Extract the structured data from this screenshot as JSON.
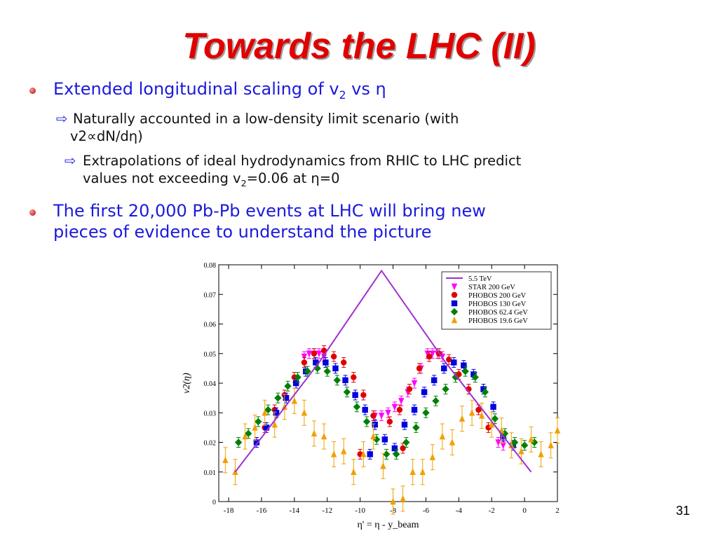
{
  "slide": {
    "title": "Towards the LHC (II)",
    "bullet1": {
      "text": "Extended longitudinal scaling of v",
      "sub": "2",
      "after": " vs η"
    },
    "sub1": {
      "line1": "Naturally accounted in a low-density limit scenario (with",
      "line2": "v2∝dN/dη)"
    },
    "sub2": {
      "line1": "Extrapolations of ideal hydrodynamics from RHIC to LHC predict",
      "line2a": "values not exceeding v",
      "sub": "2",
      "line2b": "=0.06 at η=0"
    },
    "bullet2": {
      "line1": "The first 20,000 Pb-Pb events at LHC will bring new",
      "line2": "pieces of evidence to understand the picture"
    },
    "page_number": "31"
  },
  "chart_data": {
    "type": "scatter",
    "xlabel": "η' = η - y_beam",
    "ylabel": "v2(η)",
    "xlim": [
      -18.6,
      2
    ],
    "ylim": [
      0,
      0.08
    ],
    "xticks": [
      -18,
      -16,
      -14,
      -12,
      -10,
      -8,
      -6,
      -4,
      -2,
      0,
      2
    ],
    "yticks": [
      0,
      0.01,
      0.02,
      0.03,
      0.04,
      0.05,
      0.06,
      0.07,
      0.08
    ],
    "legend_position": "top-right",
    "series": [
      {
        "name": "5.5 TeV",
        "kind": "line",
        "color": "#a030d0",
        "points": [
          [
            -17.6,
            0.01
          ],
          [
            -12.5,
            0.047
          ],
          [
            -8.7,
            0.078
          ],
          [
            -4.8,
            0.047
          ],
          [
            0.4,
            0.01
          ]
        ]
      },
      {
        "name": "STAR 200 GeV",
        "kind": "marker",
        "marker": "tri-down",
        "color": "#ff00ff",
        "points": [
          [
            -13.4,
            0.049
          ],
          [
            -13.1,
            0.05
          ],
          [
            -12.8,
            0.05
          ],
          [
            -12.5,
            0.05
          ],
          [
            -12.2,
            0.049
          ],
          [
            -9.1,
            0.029
          ],
          [
            -8.7,
            0.029
          ],
          [
            -8.3,
            0.03
          ],
          [
            -7.9,
            0.032
          ],
          [
            -7.5,
            0.034
          ],
          [
            -7.1,
            0.037
          ],
          [
            -6.7,
            0.04
          ],
          [
            -6.3,
            0.045
          ],
          [
            -5.9,
            0.05
          ],
          [
            -5.6,
            0.05
          ],
          [
            -5.3,
            0.05
          ],
          [
            -5.0,
            0.049
          ],
          [
            -1.6,
            0.02
          ],
          [
            -1.3,
            0.019
          ]
        ]
      },
      {
        "name": "PHOBOS 200 GeV",
        "kind": "marker",
        "marker": "circle",
        "color": "#e00000",
        "points": [
          [
            -15.8,
            0.025
          ],
          [
            -15.2,
            0.031
          ],
          [
            -14.6,
            0.036
          ],
          [
            -14.0,
            0.042
          ],
          [
            -13.4,
            0.047
          ],
          [
            -12.8,
            0.05
          ],
          [
            -12.2,
            0.051
          ],
          [
            -11.6,
            0.049
          ],
          [
            -11.0,
            0.047
          ],
          [
            -10.4,
            0.042
          ],
          [
            -9.8,
            0.036
          ],
          [
            -9.2,
            0.029
          ],
          [
            -10.0,
            0.016
          ],
          [
            -8.2,
            0.027
          ],
          [
            -7.6,
            0.031
          ],
          [
            -7.0,
            0.038
          ],
          [
            -6.4,
            0.045
          ],
          [
            -5.8,
            0.049
          ],
          [
            -5.2,
            0.05
          ],
          [
            -4.6,
            0.048
          ],
          [
            -4.0,
            0.043
          ],
          [
            -3.4,
            0.038
          ],
          [
            -2.8,
            0.031
          ],
          [
            -2.2,
            0.025
          ],
          [
            -7.4,
            0.018
          ]
        ]
      },
      {
        "name": "PHOBOS 130 GeV",
        "kind": "marker",
        "marker": "square",
        "color": "#0000e0",
        "points": [
          [
            -16.3,
            0.02
          ],
          [
            -15.7,
            0.025
          ],
          [
            -15.1,
            0.03
          ],
          [
            -14.5,
            0.035
          ],
          [
            -13.9,
            0.04
          ],
          [
            -13.3,
            0.044
          ],
          [
            -12.7,
            0.047
          ],
          [
            -12.1,
            0.047
          ],
          [
            -11.5,
            0.045
          ],
          [
            -10.9,
            0.041
          ],
          [
            -10.3,
            0.036
          ],
          [
            -9.7,
            0.031
          ],
          [
            -9.1,
            0.026
          ],
          [
            -8.5,
            0.021
          ],
          [
            -9.4,
            0.016
          ],
          [
            -7.9,
            0.018
          ],
          [
            -7.3,
            0.026
          ],
          [
            -6.7,
            0.031
          ],
          [
            -6.1,
            0.037
          ],
          [
            -5.5,
            0.041
          ],
          [
            -4.9,
            0.045
          ],
          [
            -4.3,
            0.047
          ],
          [
            -3.7,
            0.046
          ],
          [
            -3.1,
            0.043
          ],
          [
            -2.5,
            0.038
          ],
          [
            -1.9,
            0.032
          ],
          [
            -1.3,
            0.022
          ],
          [
            -0.7,
            0.019
          ]
        ]
      },
      {
        "name": "PHOBOS 62.4 GeV",
        "kind": "marker",
        "marker": "diamond",
        "color": "#008000",
        "points": [
          [
            -17.4,
            0.02
          ],
          [
            -16.8,
            0.023
          ],
          [
            -16.2,
            0.027
          ],
          [
            -15.6,
            0.031
          ],
          [
            -15.0,
            0.035
          ],
          [
            -14.4,
            0.039
          ],
          [
            -13.8,
            0.042
          ],
          [
            -13.2,
            0.044
          ],
          [
            -12.6,
            0.045
          ],
          [
            -12.0,
            0.044
          ],
          [
            -11.4,
            0.041
          ],
          [
            -10.8,
            0.037
          ],
          [
            -10.2,
            0.032
          ],
          [
            -9.6,
            0.027
          ],
          [
            -9.0,
            0.021
          ],
          [
            -8.4,
            0.016
          ],
          [
            -7.8,
            0.016
          ],
          [
            -7.2,
            0.02
          ],
          [
            -6.6,
            0.025
          ],
          [
            -6.0,
            0.03
          ],
          [
            -5.4,
            0.034
          ],
          [
            -4.8,
            0.038
          ],
          [
            -4.2,
            0.042
          ],
          [
            -3.6,
            0.044
          ],
          [
            -3.0,
            0.042
          ],
          [
            -2.4,
            0.037
          ],
          [
            -1.8,
            0.028
          ],
          [
            -1.2,
            0.023
          ],
          [
            -0.6,
            0.02
          ],
          [
            0.0,
            0.019
          ],
          [
            0.6,
            0.02
          ]
        ]
      },
      {
        "name": "PHOBOS 19.6 GeV",
        "kind": "marker",
        "marker": "triangle",
        "color": "#f0a000",
        "points": [
          [
            -18.2,
            0.014
          ],
          [
            -17.6,
            0.01
          ],
          [
            -17.0,
            0.022
          ],
          [
            -16.4,
            0.025
          ],
          [
            -15.8,
            0.03
          ],
          [
            -15.2,
            0.026
          ],
          [
            -14.6,
            0.032
          ],
          [
            -14.0,
            0.034
          ],
          [
            -13.4,
            0.03
          ],
          [
            -12.8,
            0.023
          ],
          [
            -12.2,
            0.022
          ],
          [
            -11.6,
            0.016
          ],
          [
            -11.0,
            0.017
          ],
          [
            -10.4,
            0.01
          ],
          [
            -9.8,
            0.016
          ],
          [
            -9.2,
            0.022
          ],
          [
            -8.6,
            0.012
          ],
          [
            -8.0,
            0.0
          ],
          [
            -7.4,
            0.001
          ],
          [
            -6.8,
            0.01
          ],
          [
            -6.2,
            0.01
          ],
          [
            -5.6,
            0.015
          ],
          [
            -5.0,
            0.022
          ],
          [
            -4.4,
            0.02
          ],
          [
            -3.8,
            0.028
          ],
          [
            -3.2,
            0.03
          ],
          [
            -2.6,
            0.029
          ],
          [
            -2.0,
            0.026
          ],
          [
            -1.4,
            0.024
          ],
          [
            -0.8,
            0.019
          ],
          [
            -0.2,
            0.017
          ],
          [
            0.4,
            0.021
          ],
          [
            1.0,
            0.016
          ],
          [
            1.6,
            0.019
          ],
          [
            2.0,
            0.024
          ]
        ]
      }
    ]
  }
}
